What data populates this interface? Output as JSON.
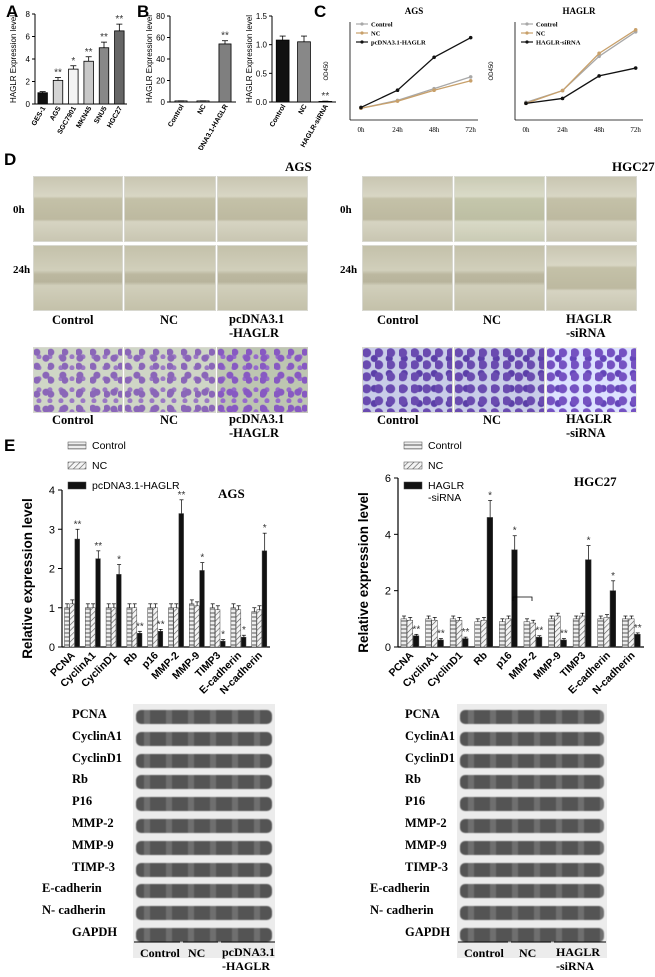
{
  "panels": {
    "A": "A",
    "B": "B",
    "C": "C",
    "D": "D",
    "E": "E"
  },
  "colors": {
    "white": "#ffffff",
    "lightgray": "#d0d0d0",
    "gray": "#9a9a9a",
    "black": "#111111",
    "nc_line": "#c8a06a",
    "control_line": "#a8a8a8"
  },
  "chart_data": [
    {
      "id": "A",
      "type": "bar",
      "ylabel": "HAGLR Expression level",
      "categories": [
        "GES-1",
        "AGS",
        "SGC7901",
        "MKN45",
        "SNU5",
        "HGC27"
      ],
      "values": [
        1.0,
        2.1,
        3.1,
        3.8,
        5.0,
        6.5
      ],
      "errors": [
        0.1,
        0.25,
        0.3,
        0.4,
        0.5,
        0.6
      ],
      "sig": [
        "",
        "**",
        "*",
        "**",
        "**",
        "**"
      ],
      "ylim": [
        0,
        8
      ],
      "yticks": [
        "0",
        "2",
        "4",
        "6",
        "8"
      ]
    },
    {
      "id": "B1",
      "type": "bar",
      "ylabel": "HAGLR Expression level",
      "categories": [
        "Control",
        "NC",
        "pcDNA3.1-HAGLR"
      ],
      "values": [
        1.0,
        1.0,
        54
      ],
      "errors": [
        0.1,
        0.1,
        3
      ],
      "sig": [
        "",
        "",
        "**"
      ],
      "ylim": [
        0,
        80
      ],
      "yticks": [
        "0",
        "20",
        "40",
        "60",
        "80"
      ]
    },
    {
      "id": "B2",
      "type": "bar",
      "ylabel": "HAGLR Expression level",
      "categories": [
        "Control",
        "NC",
        "HAGLR-siRNA"
      ],
      "values": [
        1.08,
        1.05,
        0.01
      ],
      "errors": [
        0.07,
        0.1,
        0.005
      ],
      "sig": [
        "",
        "",
        "**"
      ],
      "ylim": [
        0,
        1.5
      ],
      "yticks": [
        "0.0",
        "0.5",
        "1.0",
        "1.5"
      ]
    },
    {
      "id": "C1",
      "type": "line",
      "title": "AGS",
      "ylabel": "OD450",
      "x": [
        "0h",
        "24h",
        "48h",
        "72h"
      ],
      "series": [
        {
          "name": "Control",
          "values": [
            0.15,
            0.25,
            0.4,
            0.55
          ]
        },
        {
          "name": "NC",
          "values": [
            0.15,
            0.24,
            0.38,
            0.5
          ]
        },
        {
          "name": "pcDNA3.1-HAGLR",
          "values": [
            0.16,
            0.38,
            0.8,
            1.05
          ]
        }
      ],
      "ylim": [
        0,
        1.25
      ]
    },
    {
      "id": "C2",
      "type": "line",
      "title": "HAGLR",
      "ylabel": "OD450",
      "x": [
        "0h",
        "24h",
        "48h",
        "72h"
      ],
      "series": [
        {
          "name": "Control",
          "values": [
            0.18,
            0.3,
            0.65,
            0.9
          ]
        },
        {
          "name": "NC",
          "values": [
            0.17,
            0.3,
            0.68,
            0.92
          ]
        },
        {
          "name": "HAGLR-siRNA",
          "values": [
            0.17,
            0.22,
            0.45,
            0.53
          ]
        }
      ],
      "ylim": [
        0,
        1.0
      ]
    },
    {
      "id": "E1",
      "type": "bar",
      "title": "AGS",
      "ylabel": "Relative expression level",
      "categories": [
        "PCNA",
        "CyclinA1",
        "CyclinD1",
        "Rb",
        "p16",
        "MMP-2",
        "MMP-9",
        "TIMP3",
        "E-cadherin",
        "N-cadherin"
      ],
      "series": [
        {
          "name": "Control",
          "values": [
            1.0,
            1.0,
            1.0,
            1.0,
            1.0,
            1.0,
            1.1,
            1.0,
            1.0,
            0.9
          ]
        },
        {
          "name": "NC",
          "values": [
            1.1,
            1.0,
            1.0,
            1.0,
            1.0,
            1.0,
            1.05,
            0.95,
            0.95,
            0.95
          ]
        },
        {
          "name": "pcDNA3.1-HAGLR",
          "values": [
            2.75,
            2.25,
            1.85,
            0.35,
            0.4,
            3.4,
            1.95,
            0.15,
            0.25,
            2.45
          ]
        }
      ],
      "errors": [
        0.25,
        0.2,
        0.25,
        0.05,
        0.05,
        0.35,
        0.2,
        0.04,
        0.05,
        0.45
      ],
      "sig": [
        "**",
        "**",
        "*",
        "**",
        "**",
        "**",
        "*",
        "*",
        "*",
        "*"
      ],
      "ylim": [
        0,
        4
      ],
      "yticks": [
        "0",
        "1",
        "2",
        "3",
        "4"
      ]
    },
    {
      "id": "E2",
      "type": "bar",
      "title": "HGC27",
      "ylabel": "Relative expression level",
      "categories": [
        "PCNA",
        "CyclinA1",
        "CyclinD1",
        "Rb",
        "p16",
        "MMP-2",
        "MMP-9",
        "TIMP3",
        "E-cadherin",
        "N-cadherin"
      ],
      "series": [
        {
          "name": "Control",
          "values": [
            1.0,
            1.0,
            1.0,
            0.9,
            0.9,
            0.9,
            1.0,
            1.0,
            1.0,
            1.0
          ]
        },
        {
          "name": "NC",
          "values": [
            0.95,
            0.95,
            0.95,
            0.95,
            1.0,
            0.85,
            1.1,
            1.1,
            1.05,
            1.0
          ]
        },
        {
          "name": "HAGLR\n-siRNA",
          "values": [
            0.4,
            0.25,
            0.3,
            4.6,
            3.45,
            0.35,
            0.25,
            3.1,
            2.0,
            0.45
          ]
        }
      ],
      "errors": [
        0.05,
        0.05,
        0.05,
        0.6,
        0.5,
        0.05,
        0.05,
        0.5,
        0.35,
        0.05
      ],
      "sig": [
        "**",
        "**",
        "**",
        "*",
        "*",
        "**",
        "**",
        "*",
        "*",
        "**"
      ],
      "ylim": [
        0,
        6
      ],
      "yticks": [
        "0",
        "2",
        "4",
        "6"
      ]
    }
  ],
  "panelD": {
    "ags_title": "AGS",
    "hgc_title": "HGC27",
    "time_0h": "0h",
    "time_24h": "24h",
    "ags_cols": [
      "Control",
      "NC",
      "pcDNA3.1\n-HAGLR"
    ],
    "hgc_cols": [
      "Control",
      "NC",
      "HAGLR\n-siRNA"
    ]
  },
  "panelE": {
    "ags_legend": [
      "Control",
      "NC",
      "pcDNA3.1-HAGLR"
    ],
    "hgc_legend": [
      "Control",
      "NC",
      "HAGLR\n-siRNA"
    ],
    "blot_labels": [
      "PCNA",
      "CyclinA1",
      "CyclinD1",
      "Rb",
      "P16",
      "MMP-2",
      "MMP-9",
      "TIMP-3",
      "E-cadherin",
      "N- cadherin",
      "GAPDH"
    ],
    "ags_groups": [
      "Control",
      "NC",
      "pcDNA3.1\n-HAGLR"
    ],
    "hgc_groups": [
      "Control",
      "NC",
      "HAGLR\n-siRNA"
    ]
  }
}
